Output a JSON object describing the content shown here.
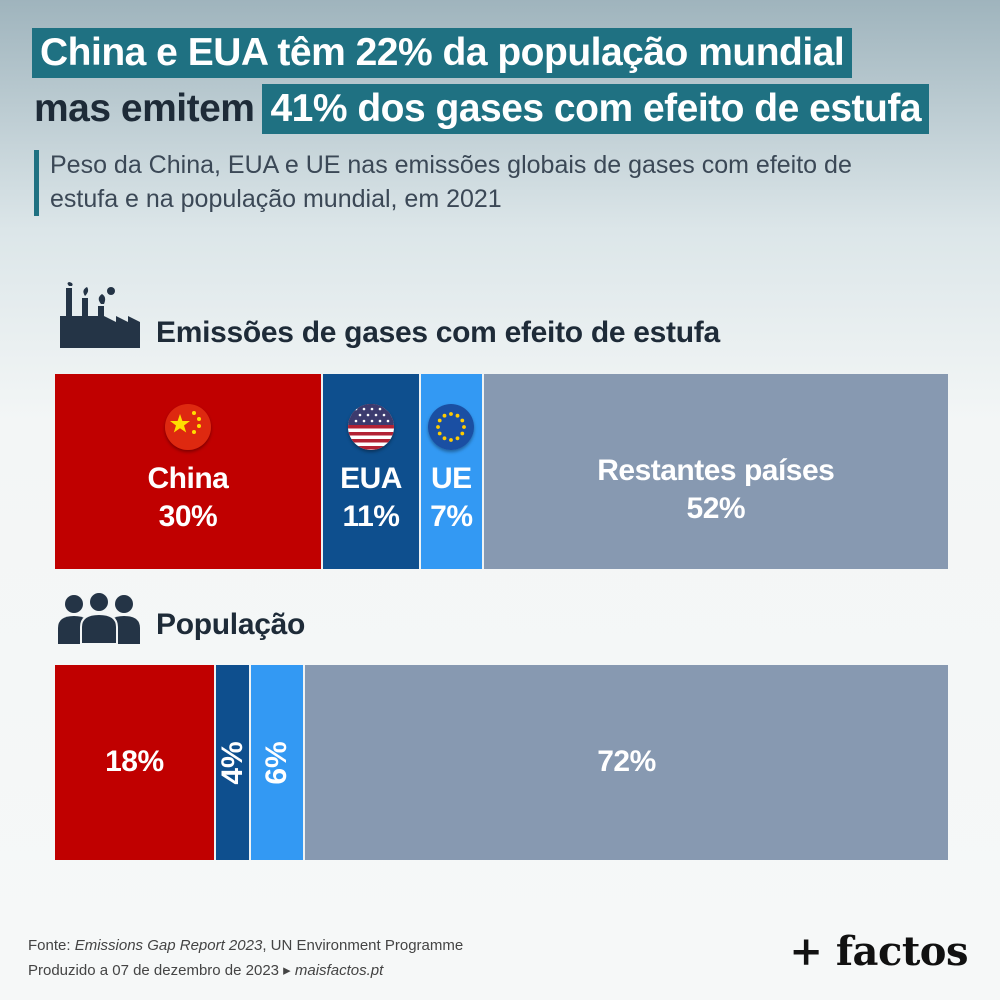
{
  "title": {
    "line1_highlight": "China e EUA têm 22% da população mundial",
    "line2_plain": "mas emitem",
    "line2_highlight": "41% dos gases com efeito de estufa"
  },
  "subtitle": "Peso da China, EUA e UE nas emissões globais de gases com efeito de estufa e na população mundial, em 2021",
  "sections": {
    "emissions_title": "Emissões de gases com efeito de estufa",
    "population_title": "População"
  },
  "icons": {
    "emissions": "factory-icon",
    "population": "people-icon",
    "china_flag": "china-flag-icon",
    "usa_flag": "usa-flag-icon",
    "eu_flag": "eu-flag-icon"
  },
  "colors": {
    "china": "#c00000",
    "usa": "#0e4f8e",
    "eu": "#3399f3",
    "rest": "#8799b1",
    "accent": "#1f7182"
  },
  "chart_data": [
    {
      "type": "bar",
      "stacked": true,
      "orientation": "horizontal",
      "title": "Emissões de gases com efeito de estufa",
      "categories": [
        "China",
        "EUA",
        "UE",
        "Restantes países"
      ],
      "values": [
        30,
        11,
        7,
        52
      ],
      "labels": [
        "30%",
        "11%",
        "7%",
        "52%"
      ],
      "unit": "%"
    },
    {
      "type": "bar",
      "stacked": true,
      "orientation": "horizontal",
      "title": "População",
      "categories": [
        "China",
        "EUA",
        "UE",
        "Restantes países"
      ],
      "values": [
        18,
        4,
        6,
        72
      ],
      "labels": [
        "18%",
        "4%",
        "6%",
        "72%"
      ],
      "unit": "%"
    }
  ],
  "footer": {
    "source_prefix": "Fonte: ",
    "source_title": "Emissions Gap Report 2023",
    "source_org": ",  UN Environment Programme",
    "produced": "Produzido a 07 de dezembro de 2023 ▸ ",
    "site": "maisfactos.pt",
    "brand": "+ factos"
  }
}
